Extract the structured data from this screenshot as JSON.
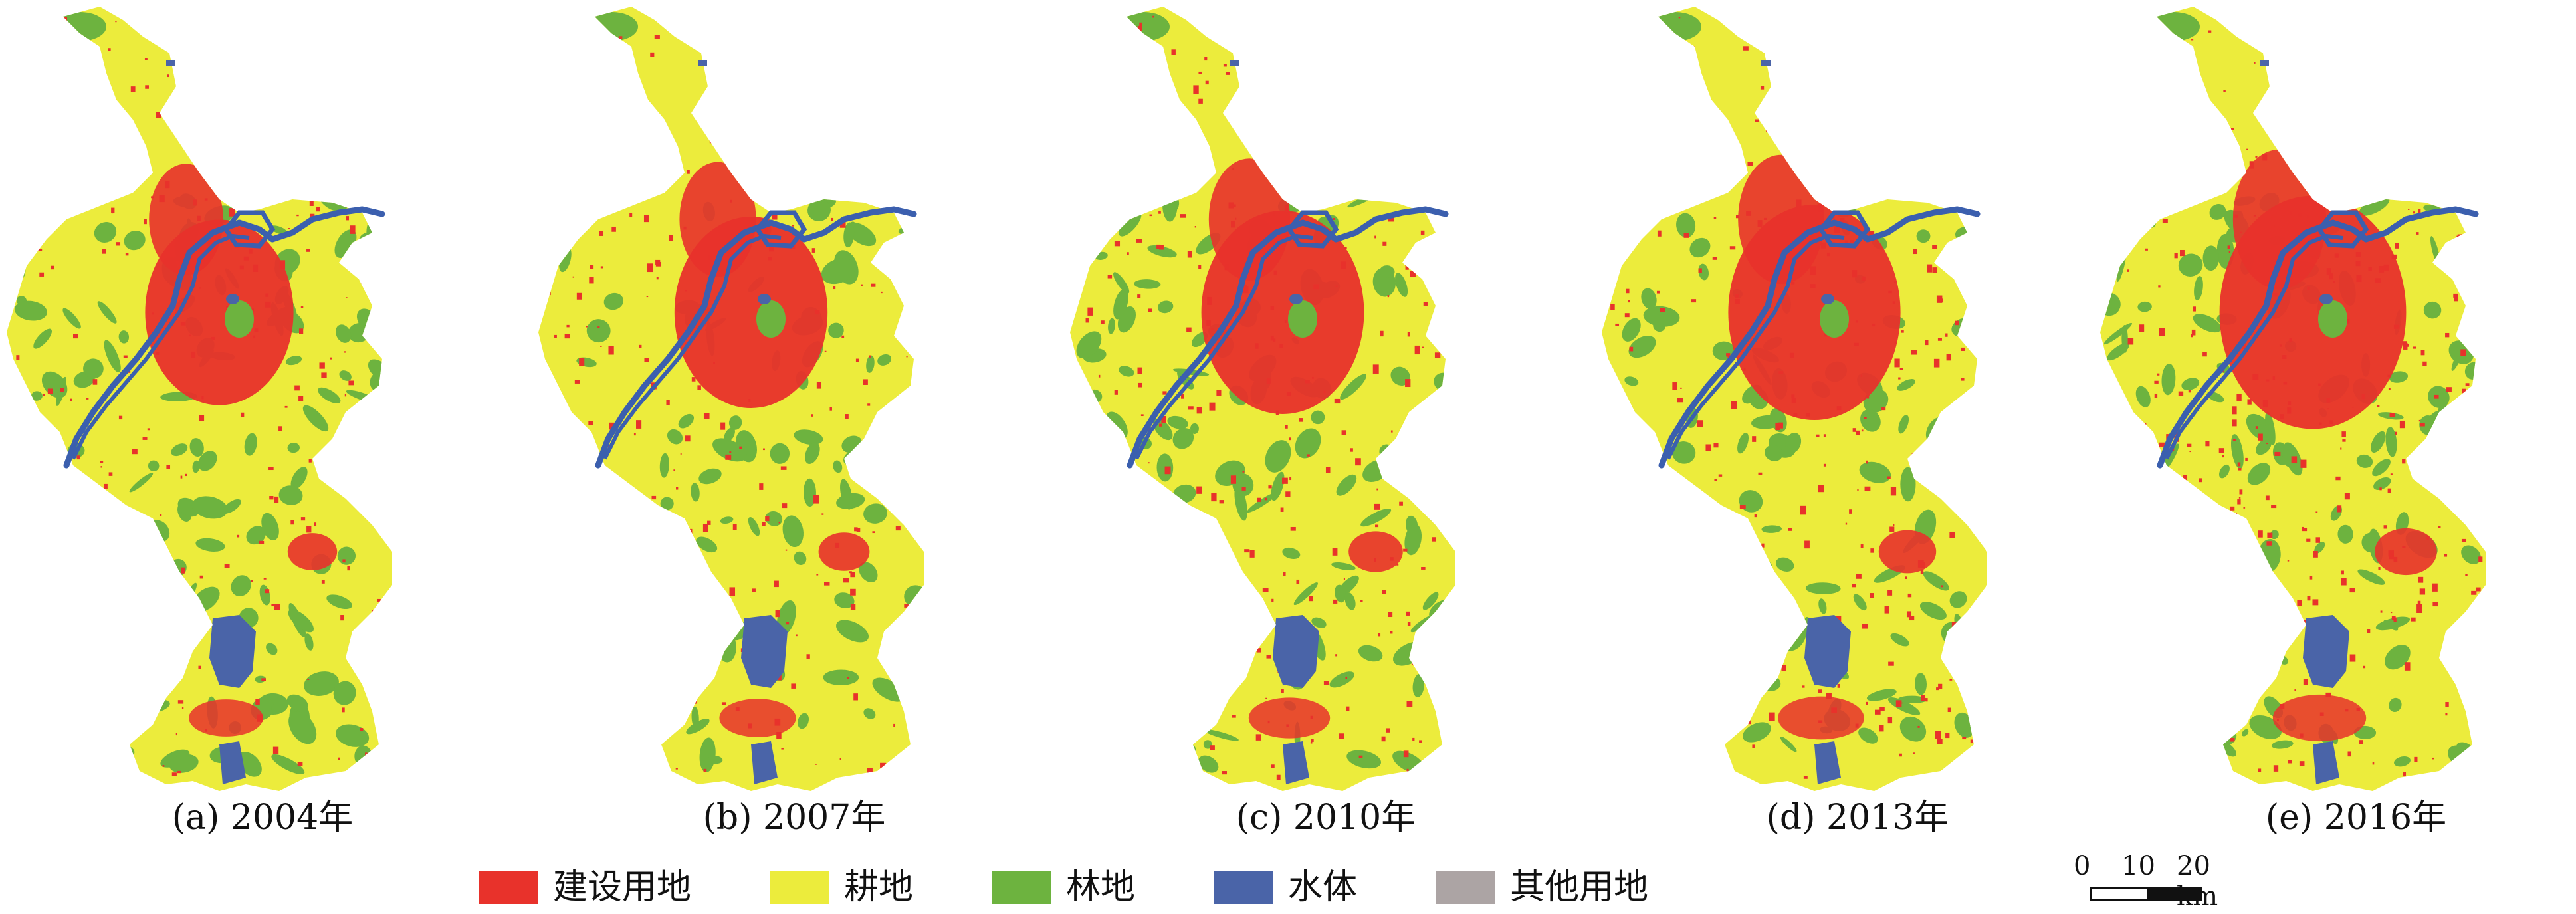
{
  "panels": [
    {
      "caption": "(a) 2004年",
      "year": 2004,
      "built_up_density": 0.55,
      "forest_density": 0.55
    },
    {
      "caption": "(b) 2007年",
      "year": 2007,
      "built_up_density": 0.6,
      "forest_density": 0.35
    },
    {
      "caption": "(c) 2010年",
      "year": 2010,
      "built_up_density": 0.7,
      "forest_density": 0.45
    },
    {
      "caption": "(d) 2013年",
      "year": 2013,
      "built_up_density": 0.8,
      "forest_density": 0.4
    },
    {
      "caption": "(e) 2016年",
      "year": 2016,
      "built_up_density": 0.95,
      "forest_density": 0.5
    }
  ],
  "legend": [
    {
      "label": "建设用地",
      "color": "#e8322b"
    },
    {
      "label": "耕地",
      "color": "#ecec3c"
    },
    {
      "label": "林地",
      "color": "#6db33f"
    },
    {
      "label": "水体",
      "color": "#4a64a8"
    },
    {
      "label": "其他用地",
      "color": "#aca4a4"
    }
  ],
  "scale_bar": {
    "tick_0": "0",
    "tick_1": "10",
    "tick_2": "20 km"
  },
  "colors": {
    "cropland": "#ecec3c",
    "built_up": "#e8322b",
    "forest": "#6db33f",
    "water": "#4a64a8",
    "river": "#3b5fae"
  }
}
